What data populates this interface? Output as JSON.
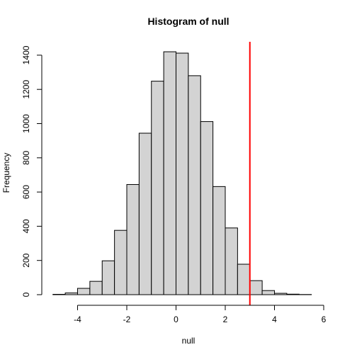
{
  "chart_data": {
    "type": "bar",
    "title": "Histogram of null",
    "xlabel": "null",
    "ylabel": "Frequency",
    "xlim": [
      -5,
      6
    ],
    "ylim": [
      0,
      1480
    ],
    "x_ticks": [
      -4,
      -2,
      0,
      2,
      4,
      6
    ],
    "y_ticks": [
      0,
      200,
      400,
      600,
      800,
      1000,
      1200,
      1400
    ],
    "bin_width": 0.5,
    "bins": [
      {
        "start": -5.0,
        "count": 2
      },
      {
        "start": -4.5,
        "count": 10
      },
      {
        "start": -4.0,
        "count": 37
      },
      {
        "start": -3.5,
        "count": 78
      },
      {
        "start": -3.0,
        "count": 198
      },
      {
        "start": -2.5,
        "count": 376
      },
      {
        "start": -2.0,
        "count": 644
      },
      {
        "start": -1.5,
        "count": 944
      },
      {
        "start": -1.0,
        "count": 1248
      },
      {
        "start": -0.5,
        "count": 1420
      },
      {
        "start": 0.0,
        "count": 1412
      },
      {
        "start": 0.5,
        "count": 1280
      },
      {
        "start": 1.0,
        "count": 1012
      },
      {
        "start": 1.5,
        "count": 632
      },
      {
        "start": 2.0,
        "count": 390
      },
      {
        "start": 2.5,
        "count": 178
      },
      {
        "start": 3.0,
        "count": 82
      },
      {
        "start": 3.5,
        "count": 24
      },
      {
        "start": 4.0,
        "count": 8
      },
      {
        "start": 4.5,
        "count": 3
      },
      {
        "start": 5.0,
        "count": 1
      }
    ],
    "reference_line": {
      "x": 3.0,
      "color": "#ff0000"
    },
    "grid": false,
    "bar_color": "#d3d3d3"
  }
}
